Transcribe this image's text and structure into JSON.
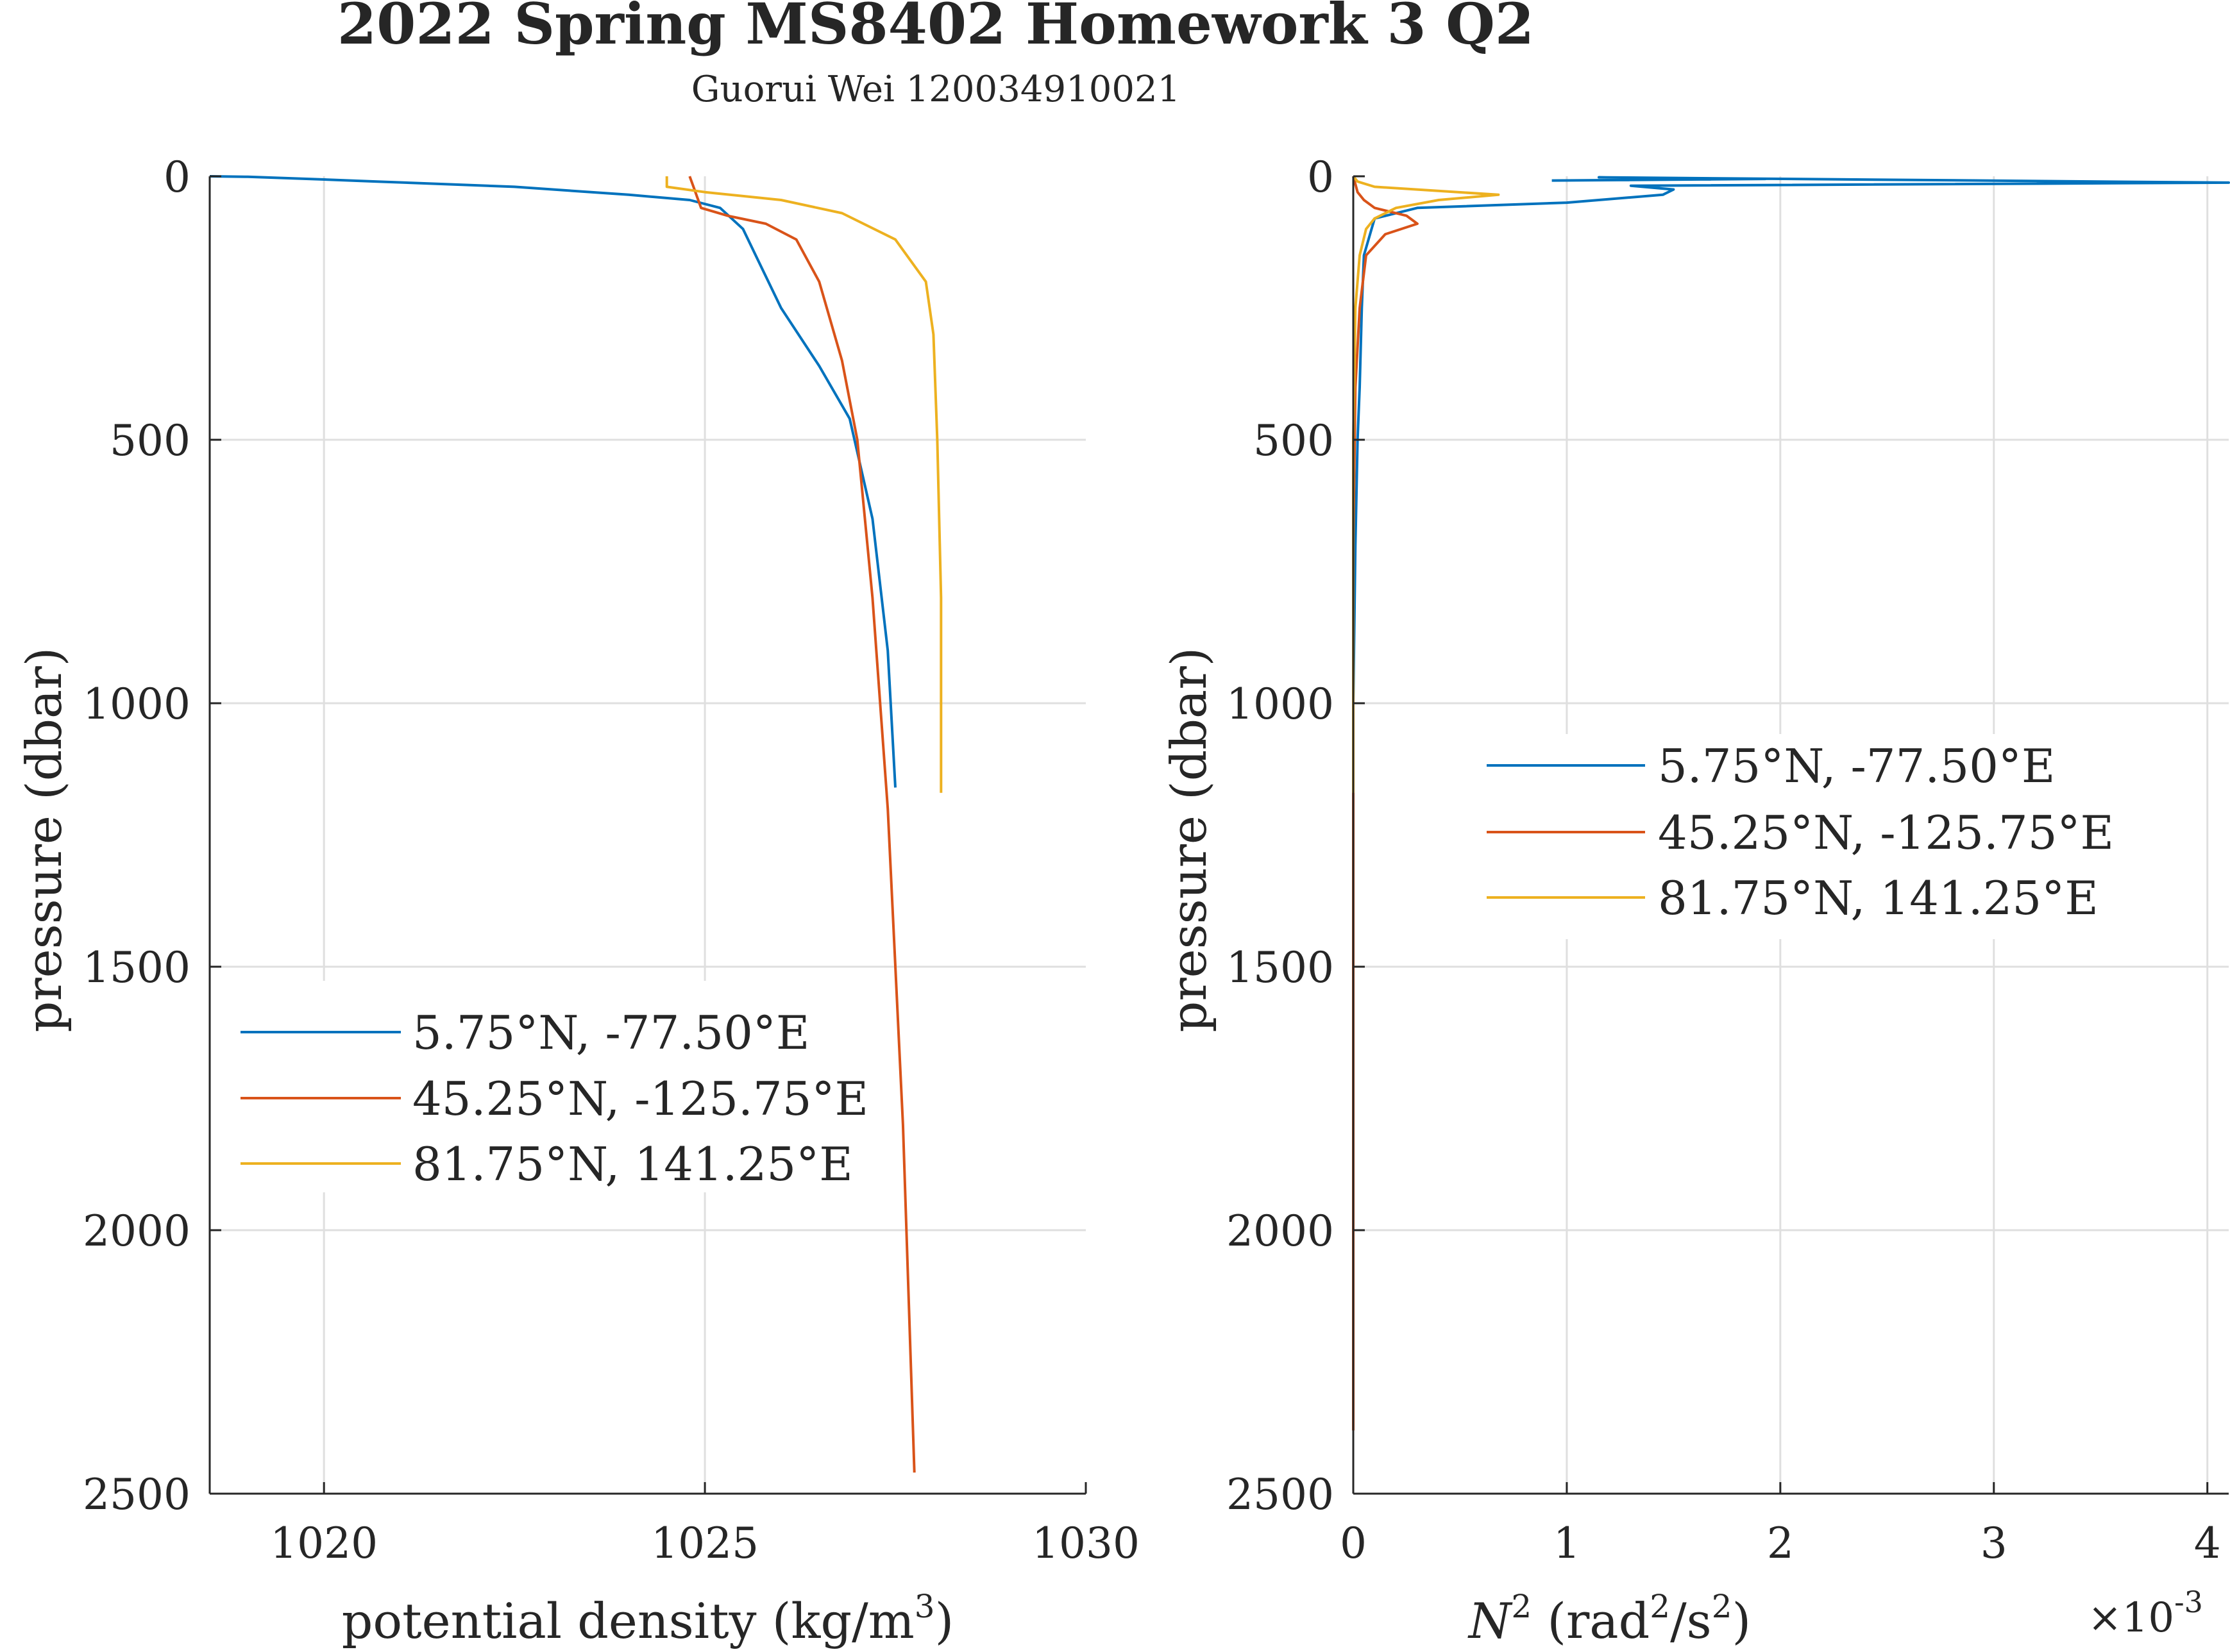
{
  "figure": {
    "title": "2022 Spring MS8402 Homework 3 Q2",
    "subtitle": "Guorui Wei 120034910021"
  },
  "colors": {
    "series1": "#0072BD",
    "series2": "#D95319",
    "series3": "#EDB120",
    "grid": "#dfdfdf",
    "axis": "#262626"
  },
  "left_panel": {
    "xlabel": "potential density (kg/m",
    "xlabel_sup": "3",
    "xlabel_end": ")",
    "ylabel": "pressure (dbar)"
  },
  "right_panel": {
    "xlabel_var": "N",
    "xlabel_var_sup": "2",
    "xlabel_a": " (rad",
    "xlabel_a_sup": "2",
    "xlabel_b": "/s",
    "xlabel_b_sup": "2",
    "xlabel_end": ")",
    "ylabel": "pressure (dbar)",
    "exponent_base": "×10",
    "exponent_power": "-3"
  },
  "legend": [
    "5.75°N, -77.50°E",
    "45.25°N, -125.75°E",
    "81.75°N, 141.25°E"
  ],
  "chart_data": [
    {
      "type": "line",
      "title": "",
      "xlabel": "potential density (kg/m3)",
      "ylabel": "pressure (dbar)",
      "xlim": [
        1018.5,
        1030
      ],
      "ylim": [
        0,
        2500
      ],
      "y_reversed": true,
      "grid": true,
      "legend_position": "bottom-left",
      "xticks": [
        1020,
        1025,
        1030
      ],
      "yticks": [
        0,
        500,
        1000,
        1500,
        2000,
        2500
      ],
      "series": [
        {
          "name": "5.75°N, -77.50°E",
          "x": [
            1018.5,
            1019.0,
            1019.8,
            1020.7,
            1022.5,
            1024.0,
            1024.8,
            1025.2,
            1025.5,
            1025.7,
            1026.0,
            1026.5,
            1026.9,
            1027.2,
            1027.4,
            1027.5
          ],
          "y": [
            0,
            1,
            5,
            10,
            20,
            35,
            45,
            60,
            100,
            160,
            250,
            360,
            460,
            650,
            900,
            1160
          ]
        },
        {
          "name": "45.25°N, -125.75°E",
          "x": [
            1024.8,
            1024.85,
            1024.9,
            1024.95,
            1025.3,
            1025.8,
            1026.2,
            1026.5,
            1026.8,
            1027.0,
            1027.2,
            1027.4,
            1027.6,
            1027.75
          ],
          "y": [
            0,
            20,
            40,
            60,
            75,
            90,
            120,
            200,
            350,
            500,
            800,
            1200,
            1800,
            2460
          ]
        },
        {
          "name": "81.75°N, 141.25°E",
          "x": [
            1024.5,
            1024.5,
            1025.0,
            1026.0,
            1026.8,
            1027.5,
            1027.9,
            1028.0,
            1028.05,
            1028.1,
            1028.1
          ],
          "y": [
            0,
            20,
            30,
            45,
            70,
            120,
            200,
            300,
            500,
            800,
            1170
          ]
        }
      ]
    },
    {
      "type": "line",
      "title": "",
      "xlabel": "N2 (rad2/s2)",
      "ylabel": "pressure (dbar)",
      "x_exponent": -3,
      "xlim": [
        0,
        4.1
      ],
      "ylim": [
        0,
        2500
      ],
      "y_reversed": true,
      "grid": true,
      "legend_position": "middle-right",
      "xticks": [
        0,
        1,
        2,
        3,
        4
      ],
      "yticks": [
        0,
        500,
        1000,
        1500,
        2000,
        2500
      ],
      "series": [
        {
          "name": "5.75°N, -77.50°E",
          "x": [
            0.93,
            1.93,
            1.15,
            4.1,
            1.3,
            1.5,
            1.45,
            1.0,
            0.3,
            0.1,
            0.05,
            0.04,
            0.03,
            0.02,
            0.01,
            0.0,
            0.0
          ],
          "y": [
            8,
            5,
            2,
            12,
            18,
            25,
            35,
            50,
            60,
            80,
            150,
            250,
            400,
            500,
            700,
            1000,
            1160
          ]
        },
        {
          "name": "45.25°N, -125.75°E",
          "x": [
            0.0,
            0.02,
            0.05,
            0.1,
            0.25,
            0.3,
            0.15,
            0.06,
            0.03,
            0.01,
            0.0,
            0.0,
            0.0
          ],
          "y": [
            0,
            30,
            45,
            60,
            75,
            90,
            110,
            150,
            250,
            400,
            700,
            1500,
            2380
          ]
        },
        {
          "name": "81.75°N, 141.25°E",
          "x": [
            0.0,
            0.02,
            0.1,
            0.68,
            0.4,
            0.2,
            0.1,
            0.06,
            0.03,
            0.01,
            0.0,
            0.0
          ],
          "y": [
            0,
            10,
            20,
            35,
            45,
            60,
            80,
            100,
            150,
            250,
            500,
            1170
          ]
        }
      ]
    }
  ]
}
